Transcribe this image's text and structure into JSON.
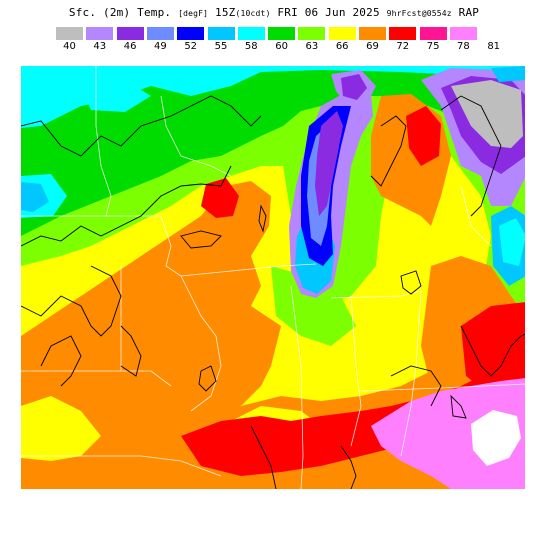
{
  "title": {
    "part1": "Sfc. (2m) Temp.",
    "units": "[degF]",
    "part2": "15Z",
    "valid": "(10cdt)",
    "part3": "FRI 06 Jun 2025",
    "forecast": "9hrFcst@0554z",
    "model": "RAP"
  },
  "legend": {
    "ticks": [
      "40",
      "43",
      "46",
      "49",
      "52",
      "55",
      "58",
      "60",
      "63",
      "66",
      "69",
      "72",
      "75",
      "78",
      "81"
    ],
    "colors": [
      "#bebebe",
      "#b487ff",
      "#8a2be2",
      "#6e8cff",
      "#0000ff",
      "#00c8ff",
      "#00ffff",
      "#00dc00",
      "#7cff00",
      "#ffff00",
      "#ff8c00",
      "#ff0000",
      "#ff1493",
      "#ff80ff",
      "#ffffff"
    ]
  },
  "palette": {
    "grey": "#bebebe",
    "lavender": "#b487ff",
    "purple": "#8a2be2",
    "blueviolet": "#6464ff",
    "blue": "#0000ff",
    "cyan": "#00ffff",
    "skyblue": "#00c8ff",
    "green": "#00dc00",
    "lime": "#7cff00",
    "yellow": "#ffff00",
    "orange": "#ff8c00",
    "red": "#ff0000",
    "pink": "#ff80ff",
    "white": "#ffffff"
  }
}
